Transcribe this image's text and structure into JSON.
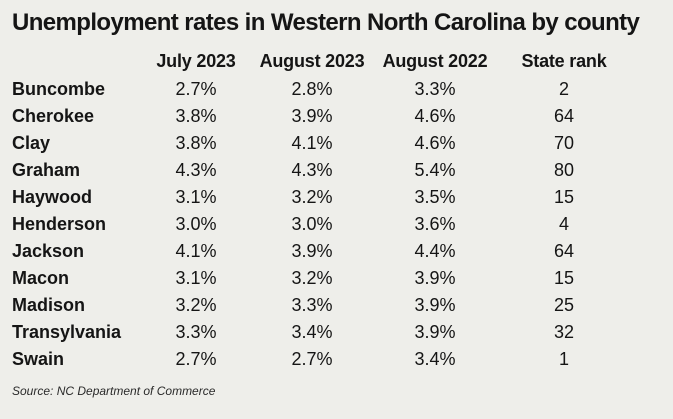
{
  "title": "Unemployment rates in Western North Carolina by county",
  "columns": [
    "",
    "July 2023",
    "August 2023",
    "August 2022",
    "State rank"
  ],
  "rows": [
    {
      "county": "Buncombe",
      "jul2023": "2.7%",
      "aug2023": "2.8%",
      "aug2022": "3.3%",
      "rank": "2"
    },
    {
      "county": "Cherokee",
      "jul2023": "3.8%",
      "aug2023": "3.9%",
      "aug2022": "4.6%",
      "rank": "64"
    },
    {
      "county": "Clay",
      "jul2023": "3.8%",
      "aug2023": "4.1%",
      "aug2022": "4.6%",
      "rank": "70"
    },
    {
      "county": "Graham",
      "jul2023": "4.3%",
      "aug2023": "4.3%",
      "aug2022": "5.4%",
      "rank": "80"
    },
    {
      "county": "Haywood",
      "jul2023": "3.1%",
      "aug2023": "3.2%",
      "aug2022": "3.5%",
      "rank": "15"
    },
    {
      "county": "Henderson",
      "jul2023": "3.0%",
      "aug2023": "3.0%",
      "aug2022": "3.6%",
      "rank": "4"
    },
    {
      "county": "Jackson",
      "jul2023": "4.1%",
      "aug2023": "3.9%",
      "aug2022": "4.4%",
      "rank": "64"
    },
    {
      "county": "Macon",
      "jul2023": "3.1%",
      "aug2023": "3.2%",
      "aug2022": "3.9%",
      "rank": "15"
    },
    {
      "county": "Madison",
      "jul2023": "3.2%",
      "aug2023": "3.3%",
      "aug2022": "3.9%",
      "rank": "25"
    },
    {
      "county": "Transylvania",
      "jul2023": "3.3%",
      "aug2023": "3.4%",
      "aug2022": "3.9%",
      "rank": "32"
    },
    {
      "county": "Swain",
      "jul2023": "2.7%",
      "aug2023": "2.7%",
      "aug2022": "3.4%",
      "rank": "1"
    }
  ],
  "source": "Source: NC Department of Commerce"
}
